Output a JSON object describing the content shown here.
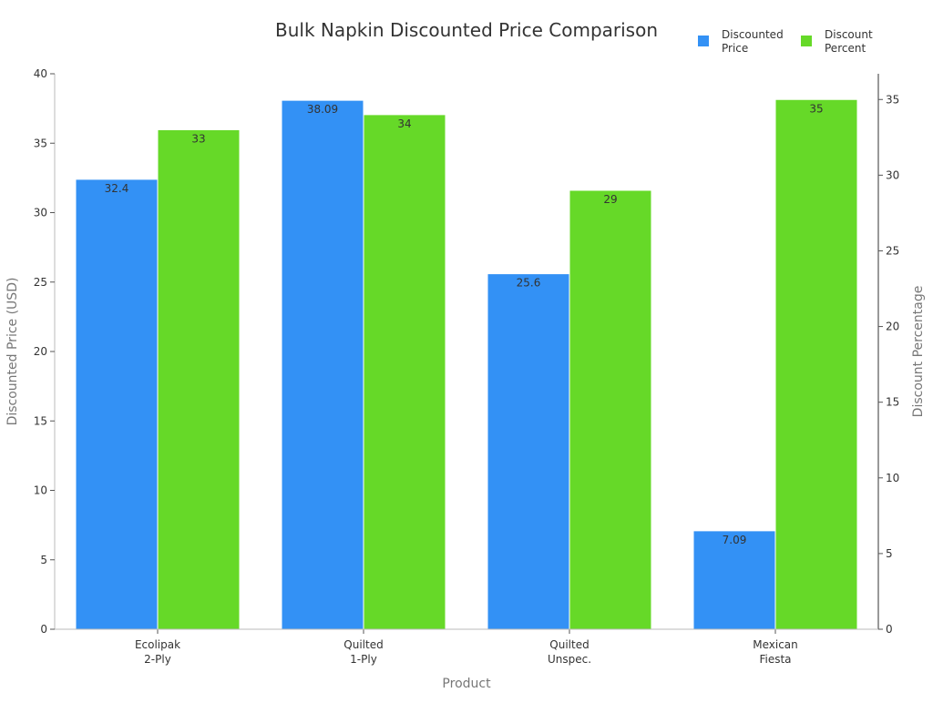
{
  "chart_data": {
    "type": "bar",
    "title": "Bulk Napkin Discounted Price Comparison",
    "xlabel": "Product",
    "ylabel": "Discounted Price (USD)",
    "y2label": "Discount Percentage",
    "categories": [
      [
        "Ecolipak",
        "2-Ply"
      ],
      [
        "Quilted",
        "1-Ply"
      ],
      [
        "Quilted",
        "Unspec."
      ],
      [
        "Mexican",
        "Fiesta"
      ]
    ],
    "ylim": [
      0,
      40
    ],
    "y2lim": [
      0,
      36.7
    ],
    "yticks": [
      0,
      5,
      10,
      15,
      20,
      25,
      30,
      35,
      40
    ],
    "y2ticks": [
      0,
      5,
      10,
      15,
      20,
      25,
      30,
      35
    ],
    "legend_position": "top-right",
    "grid": false,
    "series": [
      {
        "name": "Discounted Price",
        "legend_lines": [
          "Discounted",
          "Price"
        ],
        "axis": "left",
        "color": "#3391f5",
        "values": [
          32.4,
          38.09,
          25.6,
          7.09
        ],
        "labels": [
          "32.4",
          "38.09",
          "25.6",
          "7.09"
        ]
      },
      {
        "name": "Discount Percent",
        "legend_lines": [
          "Discount",
          "Percent"
        ],
        "axis": "right",
        "color": "#66d928",
        "values": [
          33,
          34,
          29,
          35
        ],
        "labels": [
          "33",
          "34",
          "29",
          "35"
        ]
      }
    ]
  }
}
